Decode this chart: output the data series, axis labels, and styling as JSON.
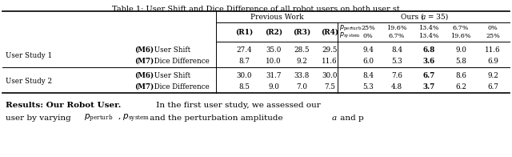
{
  "title": "Table 1: User Shift and Dice Difference of all robot users on both user st",
  "prev_work_label": "Previous Work",
  "ours_label_pre": "Ours (",
  "ours_label_a": "a",
  "ours_label_post": " = 35)",
  "col_headers_prev": [
    "(R1)",
    "(R2)",
    "(R3)",
    "(R4)"
  ],
  "p_perturb_values": [
    "25%",
    "19.6%",
    "13.4%",
    "6.7%",
    "0%"
  ],
  "p_system_values": [
    "0%",
    "6.7%",
    "13.4%",
    "19.6%",
    "25%"
  ],
  "row_groups": [
    {
      "label": "User Study 1",
      "rows": [
        {
          "metric_bold": "M6",
          "metric_label": " User Shift",
          "prev_values": [
            "27.4",
            "35.0",
            "28.5",
            "29.5"
          ],
          "ours_values": [
            "9.4",
            "8.4",
            "6.8",
            "9.0",
            "11.6"
          ],
          "ours_bold_idx": 2
        },
        {
          "metric_bold": "M7",
          "metric_label": " Dice Difference",
          "prev_values": [
            "8.7",
            "10.0",
            "9.2",
            "11.6"
          ],
          "ours_values": [
            "6.0",
            "5.3",
            "3.6",
            "5.8",
            "6.9"
          ],
          "ours_bold_idx": 2
        }
      ]
    },
    {
      "label": "User Study 2",
      "rows": [
        {
          "metric_bold": "M6",
          "metric_label": " User Shift",
          "prev_values": [
            "30.0",
            "31.7",
            "33.8",
            "30.0"
          ],
          "ours_values": [
            "8.4",
            "7.6",
            "6.7",
            "8.6",
            "9.2"
          ],
          "ours_bold_idx": 2
        },
        {
          "metric_bold": "M7",
          "metric_label": " Dice Difference",
          "prev_values": [
            "8.5",
            "9.0",
            "7.0",
            "7.5"
          ],
          "ours_values": [
            "5.3",
            "4.8",
            "3.7",
            "6.2",
            "6.7"
          ],
          "ours_bold_idx": 2
        }
      ]
    }
  ],
  "footer_bold": "Results: Our Robot User.",
  "footer_normal": " In the first user study, we assessed our",
  "footer2_pre": "user by varying ",
  "footer2_post": " and the perturbation amplitude ",
  "footer2_end": " and p",
  "bg_color": "#ffffff",
  "title_fs": 7.0,
  "header_fs": 6.5,
  "subheader_fs": 5.8,
  "body_fs": 6.3,
  "footer_fs": 7.5
}
